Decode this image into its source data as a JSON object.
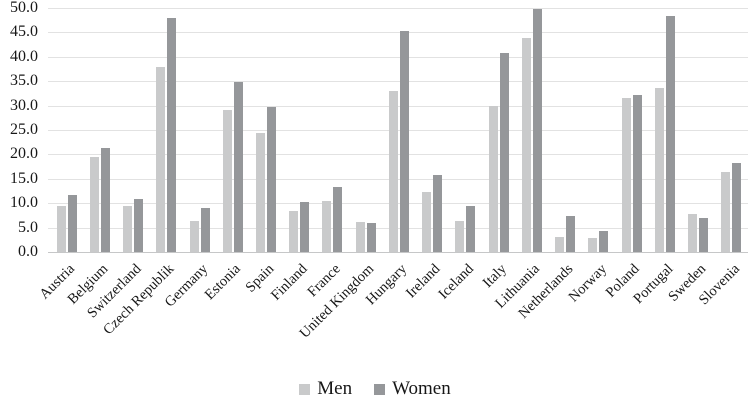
{
  "chart_data": {
    "type": "bar",
    "categories": [
      "Austria",
      "Belgium",
      "Switzerland",
      "Czech Republik",
      "Germany",
      "Estonia",
      "Spain",
      "Finland",
      "France",
      "United Kingdom",
      "Hungary",
      "Ireland",
      "Iceland",
      "Italy",
      "Lithuania",
      "Netherlands",
      "Norway",
      "Poland",
      "Portugal",
      "Sweden",
      "Slovenia"
    ],
    "series": [
      {
        "name": "Men",
        "color": "#c9cacb",
        "values": [
          9.5,
          19.5,
          9.4,
          37.9,
          6.4,
          29.2,
          24.4,
          8.5,
          10.5,
          6.2,
          33.0,
          12.4,
          6.4,
          29.9,
          43.8,
          3.1,
          2.9,
          31.6,
          33.7,
          7.8,
          16.3
        ]
      },
      {
        "name": "Women",
        "color": "#95979a",
        "values": [
          11.7,
          21.3,
          10.8,
          48.0,
          9.1,
          34.9,
          29.8,
          10.3,
          13.4,
          5.9,
          45.2,
          15.7,
          9.4,
          40.7,
          49.9,
          7.4,
          4.4,
          32.1,
          48.3,
          6.9,
          18.2
        ]
      }
    ],
    "ylim": [
      0,
      50
    ],
    "ytick_step": 5,
    "ytick_labels": [
      "0.0",
      "5.0",
      "10.0",
      "15.0",
      "20.0",
      "25.0",
      "30.0",
      "35.0",
      "40.0",
      "45.0",
      "50.0"
    ],
    "grid": true,
    "legend_position": "bottom",
    "xlabel": "",
    "ylabel": ""
  },
  "legend": {
    "items": [
      {
        "label": "Men"
      },
      {
        "label": "Women"
      }
    ]
  },
  "colors": {
    "men_bar": "#c9cacb",
    "women_bar": "#95979a",
    "gridline": "#e2e2e2",
    "axis_line": "#c6c7c8",
    "text": "#171717"
  }
}
